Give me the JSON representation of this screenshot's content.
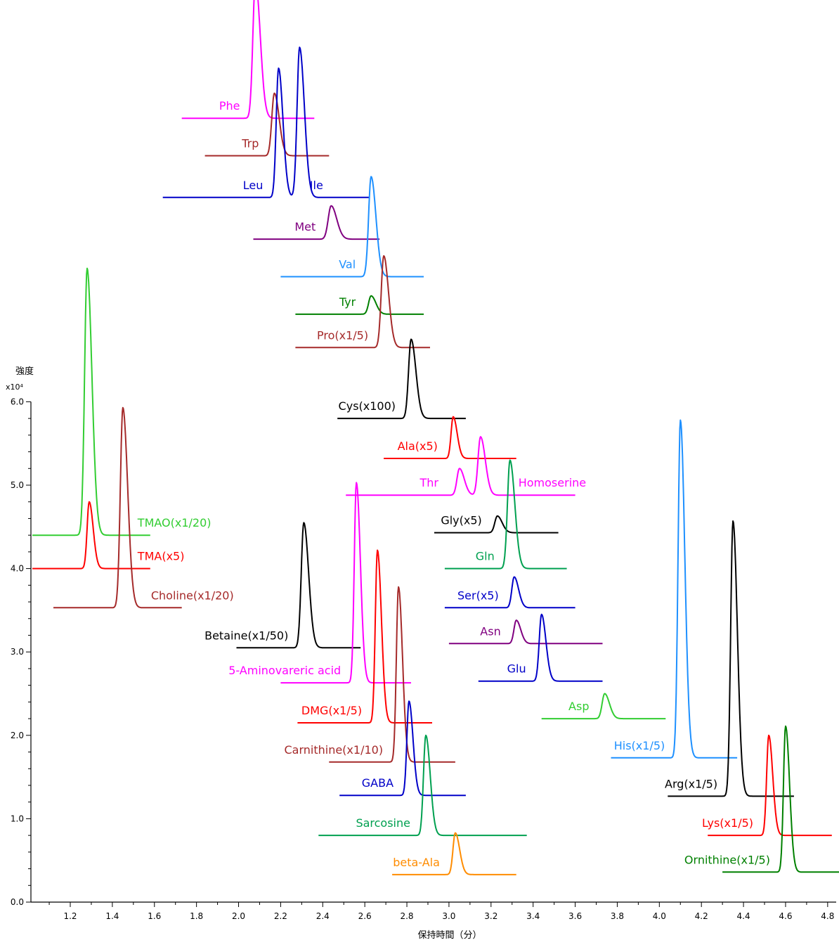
{
  "chart_data": {
    "type": "line",
    "title": "",
    "xlabel": "保持時間（分）",
    "ylabel": "強度",
    "y_multiplier": "x10⁴",
    "xlim": [
      1.02,
      4.86
    ],
    "ylim": [
      0,
      6.0
    ],
    "x_ticks": [
      "1.2",
      "1.4",
      "1.6",
      "1.8",
      "2.0",
      "2.2",
      "2.4",
      "2.6",
      "2.8",
      "3.0",
      "3.2",
      "3.4",
      "3.6",
      "3.8",
      "4.0",
      "4.2",
      "4.4",
      "4.6",
      "4.8"
    ],
    "y_ticks": [
      "0.0",
      "1.0",
      "2.0",
      "3.0",
      "4.0",
      "5.0",
      "6.0"
    ],
    "grid": false,
    "legend": "none",
    "series": [
      {
        "name": "Phe",
        "color": "#ff00ff",
        "x_start": 1.73,
        "x_end": 2.36,
        "baseline": 9.4,
        "peaks": [
          {
            "rt": 2.08,
            "h": 1.65,
            "w": 0.012
          }
        ]
      },
      {
        "name": "Trp",
        "color": "#a52a2a",
        "x_start": 1.84,
        "x_end": 2.43,
        "baseline": 8.95,
        "peaks": [
          {
            "rt": 2.17,
            "h": 0.75,
            "w": 0.012
          }
        ]
      },
      {
        "name": "Leu",
        "color": "#0000c8",
        "x_start": 1.64,
        "x_end": 2.62,
        "baseline": 8.45,
        "peaks": [
          {
            "rt": 2.19,
            "h": 1.55,
            "w": 0.011
          }
        ]
      },
      {
        "name": "Ile",
        "color": "#0000c8",
        "x_start": 2.14,
        "x_end": 2.62,
        "baseline": 8.45,
        "peaks": [
          {
            "rt": 2.29,
            "h": 1.8,
            "w": 0.012
          }
        ]
      },
      {
        "name": "Met",
        "color": "#800080",
        "x_start": 2.07,
        "x_end": 2.67,
        "baseline": 7.95,
        "peaks": [
          {
            "rt": 2.44,
            "h": 0.4,
            "w": 0.014
          }
        ]
      },
      {
        "name": "Val",
        "color": "#1e90ff",
        "x_start": 2.2,
        "x_end": 2.88,
        "baseline": 7.5,
        "peaks": [
          {
            "rt": 2.63,
            "h": 1.2,
            "w": 0.012
          }
        ]
      },
      {
        "name": "Tyr",
        "color": "#008000",
        "x_start": 2.27,
        "x_end": 2.88,
        "baseline": 7.05,
        "peaks": [
          {
            "rt": 2.63,
            "h": 0.22,
            "w": 0.012
          }
        ]
      },
      {
        "name": "Pro(x1/5)",
        "color": "#a52a2a",
        "x_start": 2.27,
        "x_end": 2.91,
        "baseline": 6.65,
        "peaks": [
          {
            "rt": 2.69,
            "h": 1.1,
            "w": 0.012
          }
        ]
      },
      {
        "name": "Cys(x100)",
        "color": "#000000",
        "x_start": 2.47,
        "x_end": 3.08,
        "baseline": 5.8,
        "peaks": [
          {
            "rt": 2.82,
            "h": 0.95,
            "w": 0.012
          }
        ]
      },
      {
        "name": "Ala(x5)",
        "color": "#ff0000",
        "x_start": 2.69,
        "x_end": 3.32,
        "baseline": 5.32,
        "peaks": [
          {
            "rt": 3.02,
            "h": 0.5,
            "w": 0.01
          }
        ]
      },
      {
        "name": "Thr",
        "color": "#ff00ff",
        "x_start": 2.51,
        "x_end": 3.6,
        "baseline": 4.88,
        "peaks": [
          {
            "rt": 3.05,
            "h": 0.32,
            "w": 0.012
          },
          {
            "rt": 3.15,
            "h": 0.7,
            "w": 0.012
          }
        ]
      },
      {
        "name": "Homoserine",
        "color": "#ff00ff",
        "x_start": 2.51,
        "x_end": 3.6,
        "baseline": 4.88,
        "peaks": []
      },
      {
        "name": "Gly(x5)",
        "color": "#000000",
        "x_start": 2.93,
        "x_end": 3.52,
        "baseline": 4.43,
        "peaks": [
          {
            "rt": 3.23,
            "h": 0.2,
            "w": 0.012
          }
        ]
      },
      {
        "name": "Gln",
        "color": "#00a050",
        "x_start": 2.98,
        "x_end": 3.56,
        "baseline": 4.0,
        "peaks": [
          {
            "rt": 3.29,
            "h": 1.3,
            "w": 0.012
          }
        ]
      },
      {
        "name": "Ser(x5)",
        "color": "#0000c8",
        "x_start": 2.98,
        "x_end": 3.6,
        "baseline": 3.53,
        "peaks": [
          {
            "rt": 3.31,
            "h": 0.37,
            "w": 0.011
          }
        ]
      },
      {
        "name": "Asn",
        "color": "#800080",
        "x_start": 3.0,
        "x_end": 3.73,
        "baseline": 3.1,
        "peaks": [
          {
            "rt": 3.32,
            "h": 0.28,
            "w": 0.011
          }
        ]
      },
      {
        "name": "Glu",
        "color": "#0000c8",
        "x_start": 3.14,
        "x_end": 3.73,
        "baseline": 2.65,
        "peaks": [
          {
            "rt": 3.44,
            "h": 0.8,
            "w": 0.011
          }
        ]
      },
      {
        "name": "Asp",
        "color": "#32cd32",
        "x_start": 3.44,
        "x_end": 4.03,
        "baseline": 2.2,
        "peaks": [
          {
            "rt": 3.74,
            "h": 0.3,
            "w": 0.012
          }
        ]
      },
      {
        "name": "His(x1/5)",
        "color": "#1e90ff",
        "x_start": 3.77,
        "x_end": 4.37,
        "baseline": 1.73,
        "peaks": [
          {
            "rt": 4.1,
            "h": 4.05,
            "w": 0.011
          }
        ]
      },
      {
        "name": "Arg(x1/5)",
        "color": "#000000",
        "x_start": 4.04,
        "x_end": 4.64,
        "baseline": 1.27,
        "peaks": [
          {
            "rt": 4.35,
            "h": 3.3,
            "w": 0.011
          }
        ]
      },
      {
        "name": "Lys(x1/5)",
        "color": "#ff0000",
        "x_start": 4.23,
        "x_end": 4.82,
        "baseline": 0.8,
        "peaks": [
          {
            "rt": 4.52,
            "h": 1.2,
            "w": 0.01
          }
        ]
      },
      {
        "name": "Ornithine(x1/5)",
        "color": "#008000",
        "x_start": 4.3,
        "x_end": 4.86,
        "baseline": 0.36,
        "peaks": [
          {
            "rt": 4.6,
            "h": 1.75,
            "w": 0.01
          }
        ]
      },
      {
        "name": "TMAO(x1/20)",
        "color": "#32cd32",
        "x_start": 1.02,
        "x_end": 1.58,
        "baseline": 4.4,
        "peaks": [
          {
            "rt": 1.28,
            "h": 3.2,
            "w": 0.012
          }
        ]
      },
      {
        "name": "TMA(x5)",
        "color": "#ff0000",
        "x_start": 1.02,
        "x_end": 1.58,
        "baseline": 4.0,
        "peaks": [
          {
            "rt": 1.29,
            "h": 0.8,
            "w": 0.01
          }
        ]
      },
      {
        "name": "Choline(x1/20)",
        "color": "#a52a2a",
        "x_start": 1.12,
        "x_end": 1.73,
        "baseline": 3.53,
        "peaks": [
          {
            "rt": 1.45,
            "h": 2.4,
            "w": 0.012
          }
        ]
      },
      {
        "name": "Betaine(x1/50)",
        "color": "#000000",
        "x_start": 1.99,
        "x_end": 2.58,
        "baseline": 3.05,
        "peaks": [
          {
            "rt": 2.31,
            "h": 1.5,
            "w": 0.012
          }
        ]
      },
      {
        "name": "5-Aminovareric acid",
        "color": "#ff00ff",
        "x_start": 2.2,
        "x_end": 2.82,
        "baseline": 2.63,
        "peaks": [
          {
            "rt": 2.56,
            "h": 2.4,
            "w": 0.01
          }
        ]
      },
      {
        "name": "DMG(x1/5)",
        "color": "#ff0000",
        "x_start": 2.28,
        "x_end": 2.92,
        "baseline": 2.15,
        "peaks": [
          {
            "rt": 2.66,
            "h": 2.07,
            "w": 0.01
          }
        ]
      },
      {
        "name": "Carnithine(x1/10)",
        "color": "#a52a2a",
        "x_start": 2.43,
        "x_end": 3.03,
        "baseline": 1.68,
        "peaks": [
          {
            "rt": 2.76,
            "h": 2.1,
            "w": 0.01
          }
        ]
      },
      {
        "name": "GABA",
        "color": "#0000c8",
        "x_start": 2.48,
        "x_end": 3.08,
        "baseline": 1.28,
        "peaks": [
          {
            "rt": 2.81,
            "h": 1.13,
            "w": 0.01
          }
        ]
      },
      {
        "name": "Sarcosine",
        "color": "#00a050",
        "x_start": 2.38,
        "x_end": 3.37,
        "baseline": 0.8,
        "peaks": [
          {
            "rt": 2.89,
            "h": 1.2,
            "w": 0.011
          }
        ]
      },
      {
        "name": "beta-Ala",
        "color": "#ff8c00",
        "x_start": 2.73,
        "x_end": 3.32,
        "baseline": 0.33,
        "peaks": [
          {
            "rt": 3.03,
            "h": 0.5,
            "w": 0.011
          }
        ]
      }
    ]
  }
}
